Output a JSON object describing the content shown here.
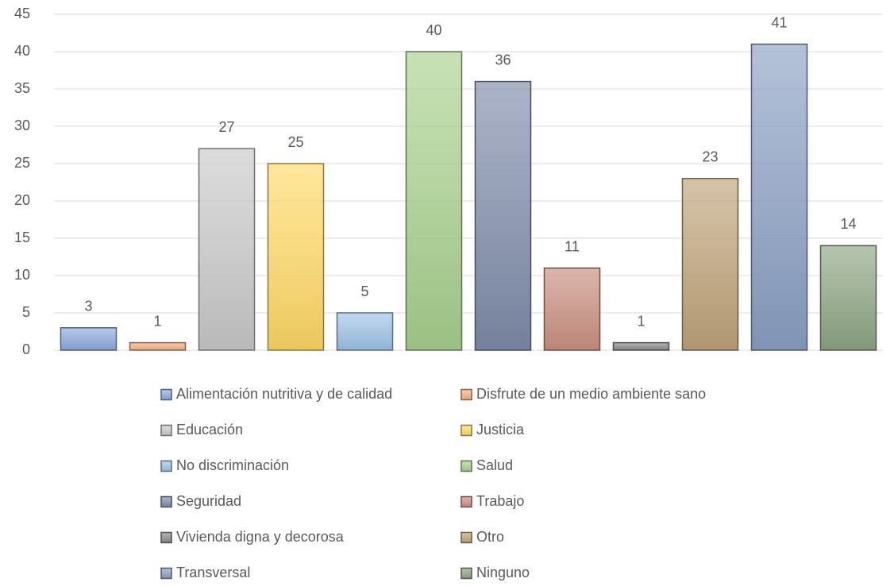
{
  "chart_data": {
    "type": "bar",
    "series": [
      {
        "name": "Alimentación nutritiva y de calidad",
        "color": "#8faadc",
        "values": [
          3
        ]
      },
      {
        "name": "Disfrute de un medio ambiente sano",
        "color": "#f4b183",
        "values": [
          1
        ]
      },
      {
        "name": "Educación",
        "color": "#c9c9c9",
        "values": [
          27
        ]
      },
      {
        "name": "Justicia",
        "color": "#ffd966",
        "values": [
          25
        ]
      },
      {
        "name": "No discriminación",
        "color": "#9dc3e6",
        "values": [
          5
        ]
      },
      {
        "name": "Salud",
        "color": "#a9d18e",
        "values": [
          40
        ]
      },
      {
        "name": "Seguridad",
        "color": "#7f8caa",
        "values": [
          36
        ]
      },
      {
        "name": "Trabajo",
        "color": "#c98f80",
        "values": [
          11
        ]
      },
      {
        "name": "Vivienda digna y decorosa",
        "color": "#8c8c8c",
        "values": [
          1
        ]
      },
      {
        "name": "Otro",
        "color": "#bfa37a",
        "values": [
          23
        ]
      },
      {
        "name": "Transversal",
        "color": "#8ba0c4",
        "values": [
          41
        ]
      },
      {
        "name": "Ninguno",
        "color": "#8ea584",
        "values": [
          14
        ]
      }
    ],
    "ylim": [
      0,
      45
    ],
    "yticks": [
      0,
      5,
      10,
      15,
      20,
      25,
      30,
      35,
      40,
      45
    ],
    "grid": true,
    "legend": "bottom"
  }
}
